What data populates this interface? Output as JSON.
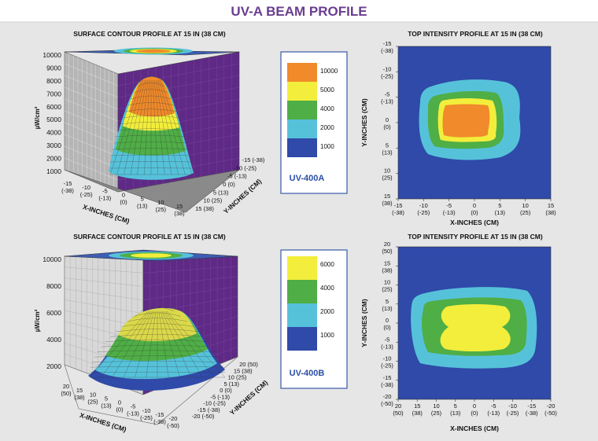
{
  "page": {
    "title": "UV-A BEAM PROFILE",
    "title_color": "#6a3d8f",
    "background": "#e6e6e6"
  },
  "chart_data": [
    {
      "type": "surface3d",
      "panel": "top-left",
      "title": "SURFACE CONTOUR PROFILE AT 15 IN (38 CM)",
      "zlabel": "µW/cm²",
      "xlabel": "X-INCHES (CM)",
      "ylabel": "Y-INCHES (CM)",
      "zticks": [
        "10000",
        "9000",
        "8000",
        "7000",
        "6000",
        "5000",
        "4000",
        "3000",
        "2000",
        "1000"
      ],
      "xticks": [
        [
          "-15",
          "(-38)"
        ],
        [
          "-10",
          "(-25)"
        ],
        [
          "-5",
          "(-13)"
        ],
        [
          "0",
          "(0)"
        ],
        [
          "5",
          "(13)"
        ],
        [
          "10",
          "(25)"
        ],
        [
          "15",
          "(38)"
        ]
      ],
      "yticks": [
        [
          "-15 (-38)"
        ],
        [
          "-10 (-25)"
        ],
        [
          "-5 (-13)"
        ],
        [
          "0 (0)"
        ],
        [
          "5 (13)"
        ],
        [
          "10 (25)"
        ],
        [
          "15 (38)"
        ]
      ],
      "zlim": [
        0,
        10000
      ],
      "peak": 9000,
      "colors": {
        "wall": "#5e2a86",
        "floor": "#8a8a8a"
      }
    },
    {
      "type": "heatmap",
      "panel": "top-right",
      "title": "TOP INTENSITY PROFILE AT 15 IN (38 CM)",
      "xlabel": "X-INCHES (CM)",
      "ylabel": "Y-INCHES (CM)",
      "xticks": [
        [
          "-15",
          "(-38)"
        ],
        [
          "-10",
          "(-25)"
        ],
        [
          "-5",
          "(-13)"
        ],
        [
          "0",
          "(0)"
        ],
        [
          "5",
          "(13)"
        ],
        [
          "10",
          "(25)"
        ],
        [
          "15",
          "(38)"
        ]
      ],
      "yticks": [
        [
          "-15",
          "(-38)"
        ],
        [
          "-10",
          "(-25)"
        ],
        [
          "-5",
          "(-13)"
        ],
        [
          "0",
          "(0)"
        ],
        [
          "5",
          "(13)"
        ],
        [
          "10",
          "(25)"
        ],
        [
          "15",
          "(38)"
        ]
      ],
      "xlim": [
        -15,
        15
      ],
      "ylim": [
        -15,
        15
      ],
      "levels": [
        {
          "min": 0,
          "color": "#2f4aa8"
        },
        {
          "min": 1000,
          "color": "#56c2da"
        },
        {
          "min": 2000,
          "color": "#4fae46"
        },
        {
          "min": 4000,
          "color": "#f2ee3b"
        },
        {
          "min": 5000,
          "color": "#f08a2a"
        }
      ]
    },
    {
      "type": "surface3d",
      "panel": "bottom-left",
      "title": "SURFACE CONTOUR PROFILE AT 15 IN (38 CM)",
      "zlabel": "µW/cm²",
      "xlabel": "X-INCHES (CM)",
      "ylabel": "Y-INCHES (CM)",
      "zticks": [
        "10000",
        "8000",
        "6000",
        "4000",
        "2000"
      ],
      "xticks": [
        [
          "20",
          "(50)"
        ],
        [
          "15",
          "(38)"
        ],
        [
          "10",
          "(25)"
        ],
        [
          "5",
          "(13)"
        ],
        [
          "0",
          "(0)"
        ],
        [
          "-5",
          "(-13)"
        ],
        [
          "-10",
          "(-25)"
        ],
        [
          "-15",
          "(-38)"
        ],
        [
          "-20",
          "(-50)"
        ]
      ],
      "yticks": [
        [
          "20 (50)"
        ],
        [
          "15 (38)"
        ],
        [
          "10 (25)"
        ],
        [
          "5 (13)"
        ],
        [
          "0 (0)"
        ],
        [
          "-5 (-13)"
        ],
        [
          "-10 (-25)"
        ],
        [
          "-15 (-38)"
        ],
        [
          "-20 (-50)"
        ]
      ],
      "zlim": [
        0,
        10000
      ],
      "peak": 5200,
      "colors": {
        "wall": "#5e2a86",
        "floor": "#e2e2e2"
      }
    },
    {
      "type": "heatmap",
      "panel": "bottom-right",
      "title": "TOP INTENSITY PROFILE AT 15 IN (38 CM)",
      "xlabel": "X-INCHES (CM)",
      "ylabel": "Y-INCHES (CM)",
      "xticks": [
        [
          "20",
          "(50)"
        ],
        [
          "15",
          "(38)"
        ],
        [
          "10",
          "(25)"
        ],
        [
          "5",
          "(13)"
        ],
        [
          "0",
          "(0)"
        ],
        [
          "-5",
          "(-13)"
        ],
        [
          "-10",
          "(-25)"
        ],
        [
          "-15",
          "(-38)"
        ],
        [
          "-20",
          "(-50)"
        ]
      ],
      "yticks": [
        [
          "20",
          "(50)"
        ],
        [
          "15",
          "(38)"
        ],
        [
          "10",
          "(25)"
        ],
        [
          "5",
          "(13)"
        ],
        [
          "0",
          "(0)"
        ],
        [
          "-5",
          "(-13)"
        ],
        [
          "-10",
          "(-25)"
        ],
        [
          "-15",
          "(-38)"
        ],
        [
          "-20",
          "(-50)"
        ]
      ],
      "xlim": [
        20,
        -20
      ],
      "ylim": [
        20,
        -20
      ],
      "levels": [
        {
          "min": 0,
          "color": "#2f4aa8"
        },
        {
          "min": 1000,
          "color": "#56c2da"
        },
        {
          "min": 2000,
          "color": "#4fae46"
        },
        {
          "min": 4000,
          "color": "#f2ee3b"
        }
      ]
    }
  ],
  "legends": [
    {
      "model": "UV-400A",
      "entries": [
        {
          "label": "10000",
          "color": "#f08a2a"
        },
        {
          "label": "5000",
          "color": "#f2ee3b"
        },
        {
          "label": "4000",
          "color": "#4fae46"
        },
        {
          "label": "2000",
          "color": "#56c2da"
        },
        {
          "label": "1000",
          "color": "#2f4aa8"
        }
      ]
    },
    {
      "model": "UV-400B",
      "entries": [
        {
          "label": "6000",
          "color": "#f2ee3b"
        },
        {
          "label": "4000",
          "color": "#4fae46"
        },
        {
          "label": "2000",
          "color": "#56c2da"
        },
        {
          "label": "1000",
          "color": "#2f4aa8"
        }
      ]
    }
  ]
}
